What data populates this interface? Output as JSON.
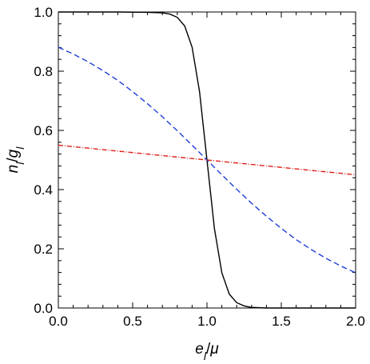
{
  "chart_data": {
    "type": "line",
    "title": "",
    "xlabel": "e_l/μ",
    "ylabel": "n_l/g_l",
    "xlim": [
      0.0,
      2.0
    ],
    "ylim": [
      0.0,
      1.0
    ],
    "x_ticks": [
      "0.0",
      "0.5",
      "1.0",
      "1.5",
      "2.0"
    ],
    "y_ticks": [
      "0.0",
      "0.2",
      "0.4",
      "0.6",
      "0.8",
      "1.0"
    ],
    "x_tick_values": [
      0.0,
      0.5,
      1.0,
      1.5,
      2.0
    ],
    "y_tick_values": [
      0.0,
      0.2,
      0.4,
      0.6,
      0.8,
      1.0
    ],
    "grid": false,
    "series": [
      {
        "style": "solid",
        "color": "#000000",
        "x": [
          0.0,
          0.2,
          0.4,
          0.6,
          0.7,
          0.75,
          0.8,
          0.85,
          0.9,
          0.95,
          1.0,
          1.05,
          1.1,
          1.15,
          1.2,
          1.25,
          1.3,
          1.4,
          1.6,
          1.8,
          2.0
        ],
        "y": [
          1.0,
          1.0,
          1.0,
          0.999,
          0.997,
          0.993,
          0.982,
          0.953,
          0.881,
          0.731,
          0.5,
          0.269,
          0.119,
          0.047,
          0.018,
          0.007,
          0.002,
          0.0,
          0.0,
          0.0,
          0.0
        ]
      },
      {
        "style": "dashed",
        "color": "#1f3fd6",
        "x": [
          0.0,
          0.1,
          0.2,
          0.3,
          0.4,
          0.5,
          0.6,
          0.7,
          0.8,
          0.9,
          1.0,
          1.1,
          1.2,
          1.3,
          1.4,
          1.5,
          1.6,
          1.7,
          1.8,
          1.9,
          2.0
        ],
        "y": [
          0.881,
          0.858,
          0.832,
          0.802,
          0.769,
          0.731,
          0.69,
          0.646,
          0.599,
          0.55,
          0.5,
          0.45,
          0.401,
          0.354,
          0.31,
          0.269,
          0.231,
          0.198,
          0.168,
          0.142,
          0.119
        ]
      },
      {
        "style": "dotdash",
        "color": "#e0201a",
        "x": [
          0.0,
          0.5,
          1.0,
          1.5,
          2.0
        ],
        "y": [
          0.55,
          0.525,
          0.5,
          0.475,
          0.45
        ]
      }
    ]
  }
}
